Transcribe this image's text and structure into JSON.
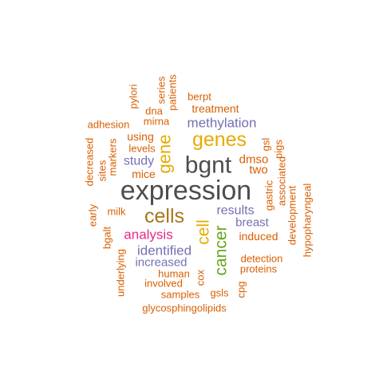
{
  "words": [
    {
      "text": "expression",
      "color": "#4d4d4d"
    },
    {
      "text": "bgnt",
      "color": "#4d4d4d"
    },
    {
      "text": "genes",
      "color": "#e6ab02"
    },
    {
      "text": "cells",
      "color": "#a6761d"
    },
    {
      "text": "gene",
      "color": "#e6ab02"
    },
    {
      "text": "cell",
      "color": "#e6ab02"
    },
    {
      "text": "cancer",
      "color": "#66a61e"
    },
    {
      "text": "analysis",
      "color": "#e7298a"
    },
    {
      "text": "methylation",
      "color": "#7570b3"
    },
    {
      "text": "identified",
      "color": "#7570b3"
    },
    {
      "text": "study",
      "color": "#7570b3"
    },
    {
      "text": "results",
      "color": "#7570b3"
    },
    {
      "text": "breast",
      "color": "#7570b3"
    },
    {
      "text": "increased",
      "color": "#7570b3"
    },
    {
      "text": "treatment",
      "color": "#d95f02"
    },
    {
      "text": "using",
      "color": "#d95f02"
    },
    {
      "text": "levels",
      "color": "#d95f02"
    },
    {
      "text": "mice",
      "color": "#d95f02"
    },
    {
      "text": "dmso",
      "color": "#d95f02"
    },
    {
      "text": "two",
      "color": "#d95f02"
    },
    {
      "text": "induced",
      "color": "#d95f02"
    },
    {
      "text": "milk",
      "color": "#d95f02"
    },
    {
      "text": "detection",
      "color": "#d95f02"
    },
    {
      "text": "proteins",
      "color": "#d95f02"
    },
    {
      "text": "human",
      "color": "#d95f02"
    },
    {
      "text": "involved",
      "color": "#d95f02"
    },
    {
      "text": "samples",
      "color": "#d95f02"
    },
    {
      "text": "gsls",
      "color": "#d95f02"
    },
    {
      "text": "glycosphingolipids",
      "color": "#d95f02"
    },
    {
      "text": "adhesion",
      "color": "#d95f02"
    },
    {
      "text": "mirna",
      "color": "#d95f02"
    },
    {
      "text": "dna",
      "color": "#d95f02"
    },
    {
      "text": "berpt",
      "color": "#d95f02"
    },
    {
      "text": "patients",
      "color": "#d95f02"
    },
    {
      "text": "series",
      "color": "#d95f02"
    },
    {
      "text": "pylori",
      "color": "#d95f02"
    },
    {
      "text": "decreased",
      "color": "#d95f02"
    },
    {
      "text": "sites",
      "color": "#d95f02"
    },
    {
      "text": "markers",
      "color": "#d95f02"
    },
    {
      "text": "early",
      "color": "#d95f02"
    },
    {
      "text": "bgalt",
      "color": "#d95f02"
    },
    {
      "text": "underlying",
      "color": "#d95f02"
    },
    {
      "text": "cox",
      "color": "#d95f02"
    },
    {
      "text": "cpg",
      "color": "#d95f02"
    },
    {
      "text": "gsl",
      "color": "#d95f02"
    },
    {
      "text": "pigs",
      "color": "#d95f02"
    },
    {
      "text": "associated",
      "color": "#d95f02"
    },
    {
      "text": "gastric",
      "color": "#d95f02"
    },
    {
      "text": "development",
      "color": "#d95f02"
    },
    {
      "text": "hypopharyngeal",
      "color": "#d95f02"
    }
  ]
}
